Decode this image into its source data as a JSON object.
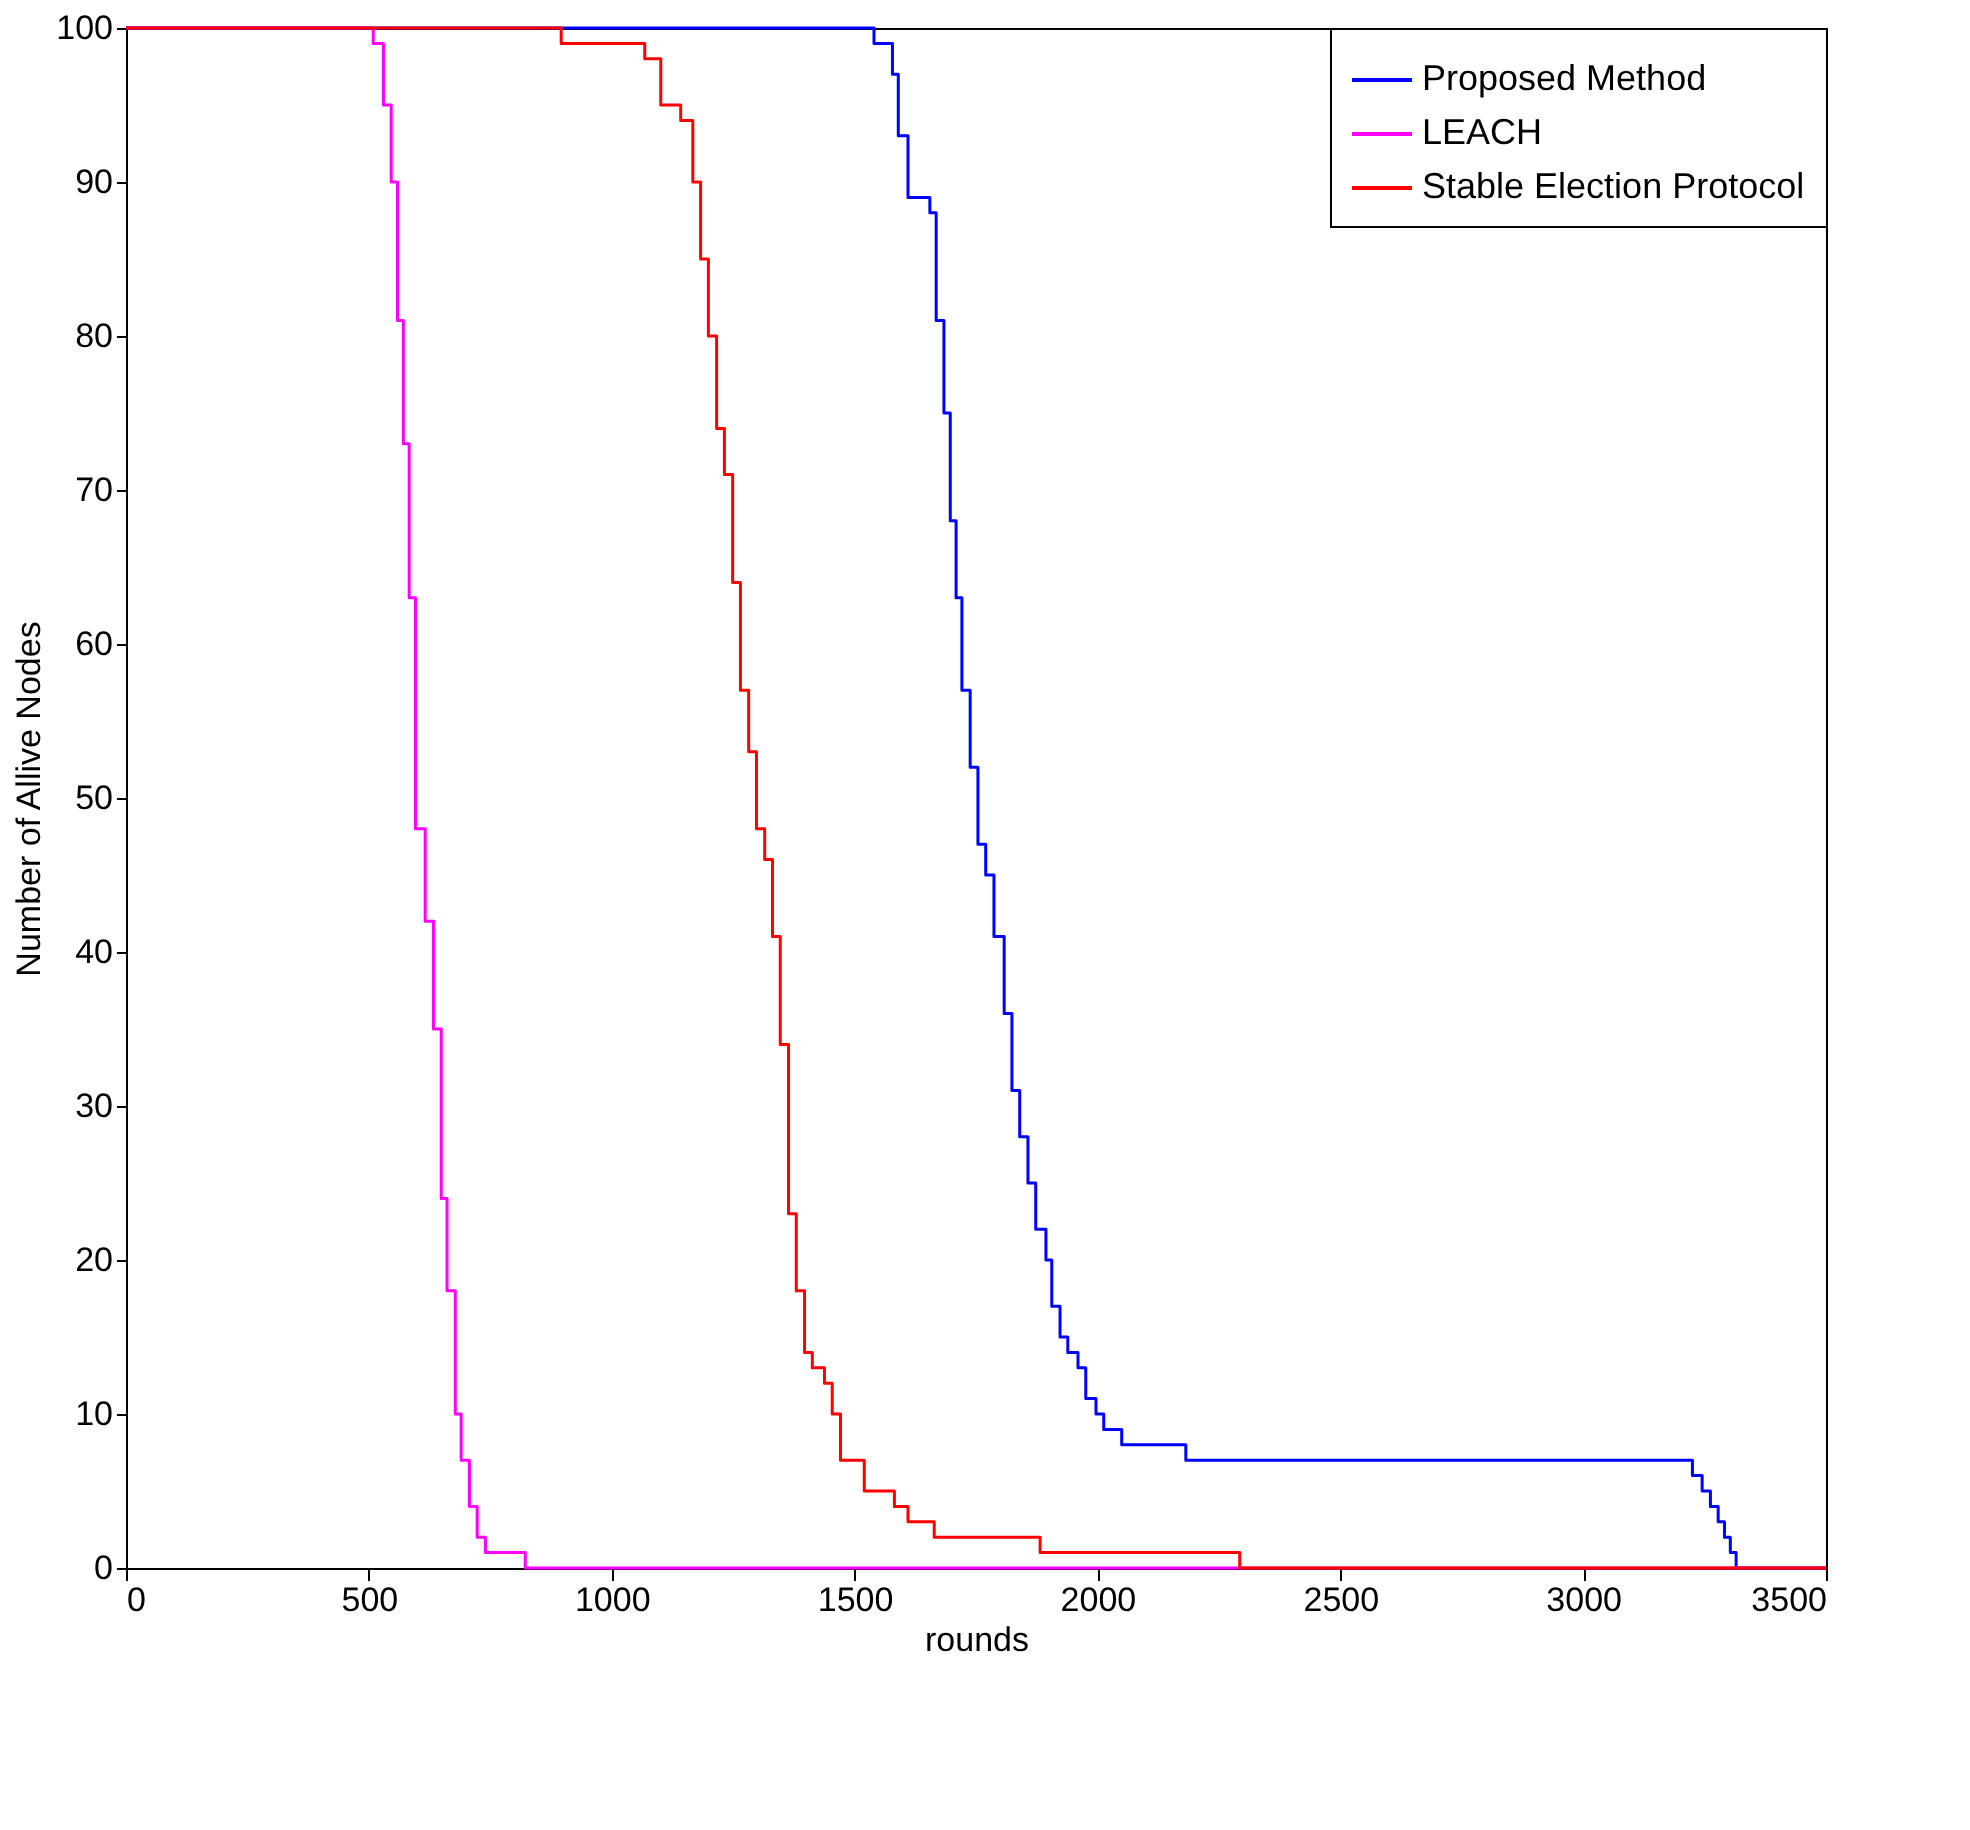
{
  "chart_data": {
    "type": "step",
    "xlabel": "rounds",
    "ylabel": "Number of Allive Nodes",
    "xlim": [
      0,
      3500
    ],
    "ylim": [
      0,
      100
    ],
    "xticks": [
      0,
      500,
      1000,
      1500,
      2000,
      2500,
      3000,
      3500
    ],
    "yticks": [
      0,
      10,
      20,
      30,
      40,
      50,
      60,
      70,
      80,
      90,
      100
    ],
    "grid": false,
    "legend": "top right",
    "marker": "none",
    "line_style": "solid",
    "series": [
      {
        "name": "Proposed Method",
        "color": "#0000ff",
        "x": [
          0,
          1540,
          1578,
          1590,
          1610,
          1655,
          1668,
          1684,
          1697,
          1709,
          1721,
          1738,
          1754,
          1770,
          1787,
          1808,
          1824,
          1840,
          1857,
          1873,
          1894,
          1906,
          1923,
          1939,
          1960,
          1976,
          1997,
          2013,
          2050,
          2182,
          3225,
          3245,
          3262,
          3278,
          3291,
          3303,
          3315,
          3500
        ],
        "values": [
          100,
          99,
          97,
          93,
          89,
          88,
          81,
          75,
          68,
          63,
          57,
          52,
          47,
          45,
          41,
          36,
          31,
          28,
          25,
          22,
          20,
          17,
          15,
          14,
          13,
          11,
          10,
          9,
          8,
          7,
          6,
          5,
          4,
          3,
          2,
          1,
          0,
          0
        ]
      },
      {
        "name": "LEACH",
        "color": "#ff00ff",
        "x": [
          0,
          509,
          530,
          546,
          559,
          571,
          583,
          596,
          616,
          633,
          649,
          661,
          678,
          690,
          707,
          723,
          740,
          822,
          3500
        ],
        "values": [
          100,
          99,
          95,
          90,
          81,
          73,
          63,
          48,
          42,
          35,
          24,
          18,
          10,
          7,
          4,
          2,
          1,
          0,
          0
        ]
      },
      {
        "name": "Stable Election Protocol",
        "color": "#ff0000",
        "x": [
          0,
          896,
          1068,
          1101,
          1142,
          1167,
          1183,
          1199,
          1216,
          1232,
          1249,
          1265,
          1282,
          1298,
          1315,
          1331,
          1347,
          1364,
          1380,
          1397,
          1413,
          1438,
          1454,
          1471,
          1520,
          1582,
          1610,
          1664,
          1882,
          2293,
          3500
        ],
        "values": [
          100,
          99,
          98,
          95,
          94,
          90,
          85,
          80,
          74,
          71,
          64,
          57,
          53,
          48,
          46,
          41,
          34,
          23,
          18,
          14,
          13,
          12,
          10,
          7,
          5,
          4,
          3,
          2,
          1,
          0,
          0
        ]
      }
    ]
  }
}
